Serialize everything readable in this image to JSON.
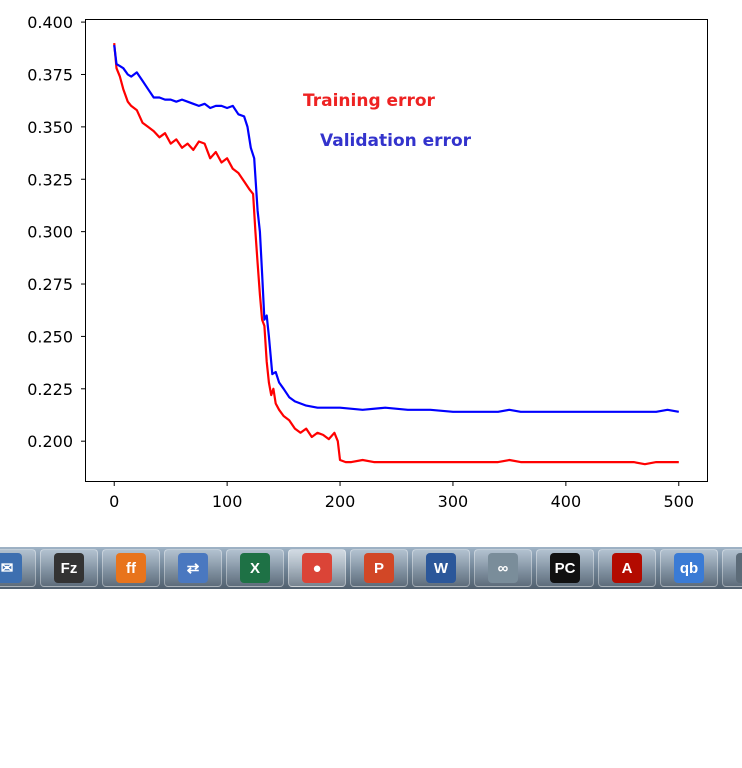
{
  "chart_data": {
    "type": "line",
    "title": "",
    "xlabel": "",
    "ylabel": "",
    "xlim": [
      -25,
      525
    ],
    "ylim": [
      0.181,
      0.401
    ],
    "xticks": [
      0,
      100,
      200,
      300,
      400,
      500
    ],
    "xtick_labels": [
      "0",
      "100",
      "200",
      "300",
      "400",
      "500"
    ],
    "yticks": [
      0.2,
      0.225,
      0.25,
      0.275,
      0.3,
      0.325,
      0.35,
      0.375,
      0.4
    ],
    "ytick_labels": [
      "0.200",
      "0.225",
      "0.250",
      "0.275",
      "0.300",
      "0.325",
      "0.350",
      "0.375",
      "0.400"
    ],
    "grid": false,
    "series": [
      {
        "name": "Training error",
        "color": "#ff0000",
        "x": [
          0,
          2,
          5,
          8,
          12,
          15,
          20,
          25,
          30,
          35,
          40,
          45,
          50,
          55,
          60,
          65,
          70,
          75,
          80,
          85,
          90,
          95,
          100,
          105,
          110,
          115,
          120,
          123,
          125,
          127,
          129,
          131,
          133,
          135,
          137,
          139,
          141,
          143,
          146,
          150,
          155,
          160,
          165,
          170,
          175,
          180,
          185,
          190,
          195,
          198,
          200,
          205,
          210,
          220,
          230,
          240,
          250,
          260,
          280,
          300,
          320,
          340,
          350,
          360,
          380,
          400,
          420,
          440,
          460,
          470,
          480,
          490,
          500
        ],
        "y": [
          0.39,
          0.378,
          0.374,
          0.368,
          0.362,
          0.36,
          0.358,
          0.352,
          0.35,
          0.348,
          0.345,
          0.347,
          0.342,
          0.344,
          0.34,
          0.342,
          0.339,
          0.343,
          0.342,
          0.335,
          0.338,
          0.333,
          0.335,
          0.33,
          0.328,
          0.324,
          0.32,
          0.318,
          0.3,
          0.285,
          0.27,
          0.258,
          0.255,
          0.238,
          0.228,
          0.222,
          0.225,
          0.218,
          0.215,
          0.212,
          0.21,
          0.206,
          0.204,
          0.206,
          0.202,
          0.204,
          0.203,
          0.201,
          0.204,
          0.2,
          0.191,
          0.19,
          0.19,
          0.191,
          0.19,
          0.19,
          0.19,
          0.19,
          0.19,
          0.19,
          0.19,
          0.19,
          0.191,
          0.19,
          0.19,
          0.19,
          0.19,
          0.19,
          0.19,
          0.189,
          0.19,
          0.19,
          0.19
        ]
      },
      {
        "name": "Validation error",
        "color": "#0000ff",
        "x": [
          0,
          2,
          5,
          8,
          12,
          15,
          20,
          25,
          30,
          35,
          40,
          45,
          50,
          55,
          60,
          65,
          70,
          75,
          80,
          85,
          90,
          95,
          100,
          105,
          110,
          115,
          118,
          121,
          124,
          127,
          129,
          131,
          133,
          135,
          137,
          140,
          143,
          146,
          150,
          155,
          160,
          170,
          180,
          190,
          200,
          220,
          240,
          260,
          280,
          300,
          320,
          340,
          350,
          360,
          380,
          400,
          420,
          440,
          460,
          480,
          490,
          500
        ],
        "y": [
          0.389,
          0.38,
          0.379,
          0.378,
          0.375,
          0.374,
          0.376,
          0.372,
          0.368,
          0.364,
          0.364,
          0.363,
          0.363,
          0.362,
          0.363,
          0.362,
          0.361,
          0.36,
          0.361,
          0.359,
          0.36,
          0.36,
          0.359,
          0.36,
          0.356,
          0.355,
          0.35,
          0.34,
          0.335,
          0.31,
          0.3,
          0.28,
          0.258,
          0.26,
          0.25,
          0.232,
          0.233,
          0.228,
          0.225,
          0.221,
          0.219,
          0.217,
          0.216,
          0.216,
          0.216,
          0.215,
          0.216,
          0.215,
          0.215,
          0.214,
          0.214,
          0.214,
          0.215,
          0.214,
          0.214,
          0.214,
          0.214,
          0.214,
          0.214,
          0.214,
          0.215,
          0.214
        ]
      }
    ],
    "annotations": [
      {
        "text": "Training error",
        "color": "#ee2222"
      },
      {
        "text": "Validation error",
        "color": "#3333cc"
      }
    ]
  },
  "taskbar": {
    "apps": [
      {
        "name": "thunderbird-icon",
        "glyph": "✉",
        "bg": "#3d6fb0"
      },
      {
        "name": "filezilla-icon",
        "glyph": "Fz",
        "bg": "#333333"
      },
      {
        "name": "firefox-icon",
        "glyph": "ff",
        "bg": "#e8741c"
      },
      {
        "name": "network-icon",
        "glyph": "⇄",
        "bg": "#4a78c0"
      },
      {
        "name": "excel-icon",
        "glyph": "X",
        "bg": "#1e7145"
      },
      {
        "name": "chrome-icon",
        "glyph": "●",
        "bg": "#db4437"
      },
      {
        "name": "powerpoint-icon",
        "glyph": "P",
        "bg": "#d24726"
      },
      {
        "name": "word-icon",
        "glyph": "W",
        "bg": "#2b579a"
      },
      {
        "name": "link-icon",
        "glyph": "∞",
        "bg": "#7a8d9a"
      },
      {
        "name": "pycharm-icon",
        "glyph": "PC",
        "bg": "#111111"
      },
      {
        "name": "acrobat-icon",
        "glyph": "A",
        "bg": "#b30b00"
      },
      {
        "name": "qbittorrent-icon",
        "glyph": "qb",
        "bg": "#3a7bd5"
      },
      {
        "name": "partial-icon",
        "glyph": "◂",
        "bg": "#5c6b78"
      }
    ]
  }
}
